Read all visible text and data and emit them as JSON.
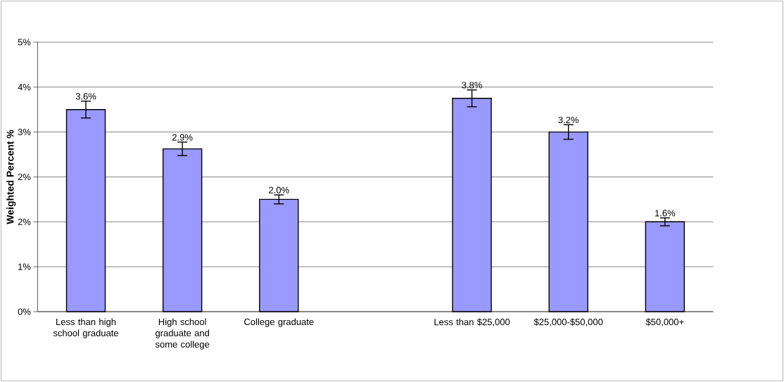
{
  "chart_data": {
    "type": "bar",
    "ylabel": "Weighted Percent %",
    "categories": [
      "Less than high school graduate",
      "High school graduate and some college",
      "College graduate",
      null,
      "Less than $25,000",
      "$25,000-$50,000",
      "$50,000+"
    ],
    "values": [
      3.6,
      2.9,
      2.0,
      null,
      3.8,
      3.2,
      1.6
    ],
    "errors": [
      0.15,
      0.12,
      0.08,
      null,
      0.15,
      0.13,
      0.07
    ],
    "value_labels": [
      "3.6%",
      "2.9%",
      "2.0%",
      null,
      "3.8%",
      "3.2%",
      "1.6%"
    ],
    "color": "#9999ff",
    "ylim": [
      0,
      4.8
    ],
    "yticks": [
      {
        "value": 0,
        "label": "0%"
      },
      {
        "value": 0.8,
        "label": "1%"
      },
      {
        "value": 1.6,
        "label": "2%"
      },
      {
        "value": 2.4,
        "label": "2%"
      },
      {
        "value": 3.2,
        "label": "3%"
      },
      {
        "value": 4.0,
        "label": "4%"
      },
      {
        "value": 4.8,
        "label": "5%"
      }
    ],
    "grid": "y"
  }
}
